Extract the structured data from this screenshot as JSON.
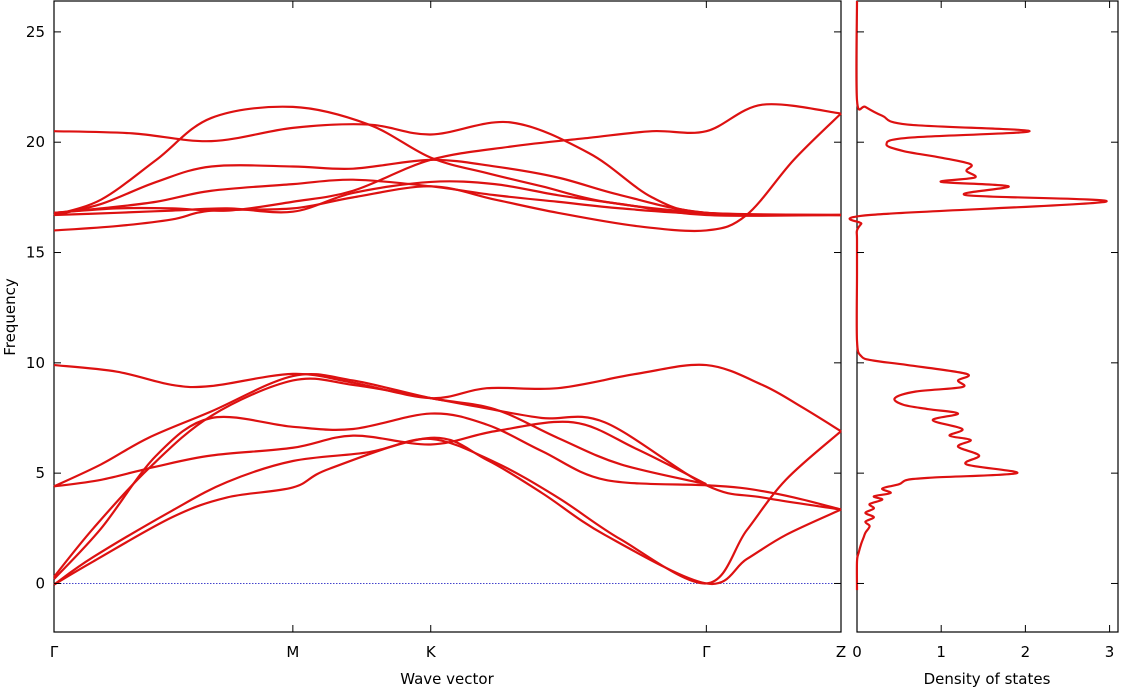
{
  "chart_data": [
    {
      "id": "dispersion",
      "type": "line",
      "title": "",
      "xlabel": "Wave vector",
      "ylabel": "Frequency",
      "ylim": [
        -2.2,
        26.4
      ],
      "yticks": [
        0,
        5,
        10,
        15,
        20,
        25
      ],
      "xlim": [
        0,
        1
      ],
      "x_points": [
        {
          "label": "Γ",
          "x": 0.0
        },
        {
          "label": "M",
          "x": 0.3035
        },
        {
          "label": "K",
          "x": 0.4787
        },
        {
          "label": "Γ",
          "x": 0.8289
        },
        {
          "label": "Z",
          "x": 1.0
        }
      ],
      "zero_line": true,
      "grid": false,
      "line_color": "#dd1111",
      "zero_line_color": "#4444cc",
      "bands": [
        {
          "x": [
            0,
            0.05,
            0.15,
            0.22,
            0.3035,
            0.35,
            0.4787,
            0.55,
            0.62,
            0.7,
            0.8289,
            0.88,
            0.93,
            1.0
          ],
          "y": [
            -0.05,
            1.0,
            3.0,
            3.9,
            4.35,
            5.2,
            6.6,
            5.6,
            4.1,
            2.2,
            0.0,
            1.1,
            2.2,
            3.35
          ]
        },
        {
          "x": [
            0,
            0.05,
            0.15,
            0.22,
            0.3035,
            0.4,
            0.4787,
            0.56,
            0.64,
            0.72,
            0.8289,
            0.88,
            0.93,
            1.0
          ],
          "y": [
            -0.05,
            1.2,
            3.3,
            4.6,
            5.55,
            5.95,
            6.55,
            5.5,
            3.9,
            2.0,
            0.0,
            2.4,
            4.7,
            6.9
          ]
        },
        {
          "x": [
            0,
            0.06,
            0.13,
            0.2,
            0.3035,
            0.38,
            0.4787,
            0.55,
            0.62,
            0.7,
            0.8289,
            0.88,
            0.94,
            1.0
          ],
          "y": [
            0.2,
            2.5,
            5.8,
            7.5,
            7.1,
            7.0,
            7.7,
            7.2,
            6.0,
            4.7,
            4.45,
            4.3,
            3.9,
            3.35
          ]
        },
        {
          "x": [
            0,
            0.05,
            0.12,
            0.2,
            0.3035,
            0.38,
            0.4787,
            0.54,
            0.62,
            0.7,
            0.8289,
            0.9,
            1.0
          ],
          "y": [
            0.3,
            2.5,
            5.2,
            7.6,
            9.2,
            9.0,
            8.4,
            8.0,
            7.5,
            7.3,
            4.45,
            3.9,
            3.35
          ]
        },
        {
          "x": [
            0,
            0.06,
            0.13,
            0.2,
            0.3035,
            0.38,
            0.4787,
            0.56,
            0.66,
            0.74,
            0.8289
          ],
          "y": [
            4.4,
            4.7,
            5.3,
            5.8,
            6.15,
            6.7,
            6.3,
            6.9,
            7.3,
            6.1,
            4.5
          ]
        },
        {
          "x": [
            0,
            0.06,
            0.12,
            0.2,
            0.3035,
            0.38,
            0.4787,
            0.56,
            0.64,
            0.72,
            0.8289
          ],
          "y": [
            4.4,
            5.4,
            6.6,
            7.8,
            9.4,
            9.2,
            8.4,
            7.9,
            6.6,
            5.4,
            4.5
          ]
        },
        {
          "x": [
            0,
            0.08,
            0.15,
            0.2,
            0.3035,
            0.38,
            0.4787,
            0.55,
            0.64,
            0.74,
            0.8289,
            0.9,
            0.95,
            1.0
          ],
          "y": [
            9.9,
            9.6,
            9.0,
            8.95,
            9.5,
            9.1,
            8.4,
            8.85,
            8.85,
            9.5,
            9.9,
            9.0,
            8.0,
            6.9
          ]
        },
        {
          "x": [
            0,
            0.08,
            0.15,
            0.2,
            0.3035,
            0.38,
            0.4787,
            0.56,
            0.64,
            0.74,
            0.8289,
            0.88,
            0.94,
            1.0
          ],
          "y": [
            16.0,
            16.2,
            16.5,
            16.9,
            17.0,
            17.5,
            18.0,
            17.4,
            16.8,
            16.2,
            16.0,
            16.7,
            19.2,
            21.3
          ]
        },
        {
          "x": [
            0,
            0.08,
            0.15,
            0.22,
            0.3035,
            0.38,
            0.4787,
            0.58,
            0.68,
            0.76,
            0.8289,
            0.9,
            1.0
          ],
          "y": [
            16.8,
            17.0,
            17.0,
            16.9,
            17.3,
            17.8,
            19.2,
            19.8,
            20.2,
            20.5,
            20.5,
            21.7,
            21.3
          ]
        },
        {
          "x": [
            0,
            0.1,
            0.2,
            0.3035,
            0.4,
            0.4787,
            0.58,
            0.68,
            0.76,
            0.8289,
            1.0
          ],
          "y": [
            20.5,
            20.4,
            20.05,
            20.65,
            20.8,
            20.35,
            20.9,
            19.5,
            17.5,
            16.8,
            16.7
          ]
        },
        {
          "x": [
            0,
            0.06,
            0.13,
            0.2,
            0.3035,
            0.4,
            0.4787,
            0.55,
            0.62,
            0.7,
            0.8289,
            1.0
          ],
          "y": [
            16.7,
            17.4,
            19.2,
            21.1,
            21.6,
            20.8,
            19.3,
            18.6,
            18.0,
            17.3,
            16.8,
            16.7
          ]
        },
        {
          "x": [
            0,
            0.06,
            0.13,
            0.2,
            0.3035,
            0.38,
            0.4787,
            0.56,
            0.64,
            0.72,
            0.8289,
            1.0
          ],
          "y": [
            16.7,
            17.2,
            18.2,
            18.9,
            18.9,
            18.8,
            19.2,
            18.9,
            18.4,
            17.6,
            16.8,
            16.7
          ]
        },
        {
          "x": [
            0,
            0.06,
            0.13,
            0.2,
            0.3035,
            0.38,
            0.4787,
            0.56,
            0.64,
            0.72,
            0.8289,
            1.0
          ],
          "y": [
            16.8,
            17.0,
            17.3,
            17.8,
            18.1,
            18.3,
            18.0,
            17.6,
            17.3,
            17.0,
            16.75,
            16.7
          ]
        },
        {
          "x": [
            0,
            0.08,
            0.15,
            0.22,
            0.3035,
            0.38,
            0.4787,
            0.56,
            0.64,
            0.72,
            0.8289,
            1.0
          ],
          "y": [
            16.7,
            16.8,
            16.9,
            17.0,
            16.85,
            17.7,
            18.2,
            18.1,
            17.6,
            17.2,
            16.7,
            16.7
          ]
        }
      ]
    },
    {
      "id": "dos",
      "type": "line",
      "title": "",
      "xlabel": "Density of states",
      "ylabel": "",
      "xlim": [
        0,
        3.1
      ],
      "ylim": [
        -2.2,
        26.4
      ],
      "xticks": [
        0,
        1,
        2,
        3
      ],
      "yticks": [
        0,
        5,
        10,
        15,
        20,
        25
      ],
      "grid": false,
      "line_color": "#dd1111",
      "series": [
        {
          "dos": [
            0.0,
            0.0,
            0.02,
            0.05,
            0.08,
            0.1,
            0.15,
            0.1,
            0.2,
            0.1,
            0.2,
            0.15,
            0.3,
            0.2,
            0.4,
            0.3,
            0.5,
            0.6,
            0.9,
            1.9,
            1.3,
            1.45,
            1.2,
            1.35,
            1.1,
            1.25,
            0.9,
            1.2,
            0.85,
            0.55,
            0.45,
            0.7,
            1.25,
            1.2,
            1.3,
            0.6,
            0.2,
            0.05,
            0.0,
            0.0,
            0.0,
            0.0,
            0.05,
            0.15,
            2.95,
            1.3,
            1.8,
            1.0,
            1.4,
            1.3,
            1.35,
            1.0,
            0.55,
            0.35,
            0.6,
            2.05,
            0.6,
            0.3,
            0.1,
            0.0,
            0.0
          ],
          "frequency": [
            -0.3,
            1.0,
            1.4,
            1.8,
            2.1,
            2.3,
            2.6,
            2.8,
            3.0,
            3.2,
            3.4,
            3.6,
            3.8,
            3.95,
            4.1,
            4.3,
            4.5,
            4.7,
            4.8,
            5.0,
            5.4,
            5.8,
            6.2,
            6.5,
            6.7,
            7.0,
            7.4,
            7.7,
            7.9,
            8.1,
            8.4,
            8.7,
            8.9,
            9.2,
            9.5,
            9.9,
            10.1,
            10.3,
            11.0,
            14.0,
            15.6,
            16.0,
            16.3,
            16.7,
            17.3,
            17.6,
            18.0,
            18.2,
            18.4,
            18.7,
            19.0,
            19.3,
            19.6,
            19.9,
            20.2,
            20.5,
            20.8,
            21.2,
            21.6,
            21.9,
            26.4
          ]
        }
      ]
    }
  ]
}
